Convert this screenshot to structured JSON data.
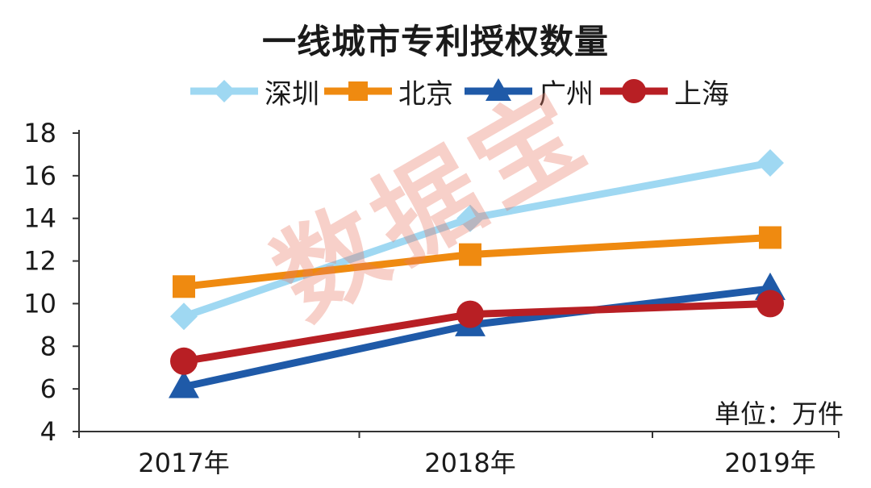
{
  "chart_data": {
    "type": "line",
    "title": "一线城市专利授权数量",
    "categories": [
      "2017年",
      "2018年",
      "2019年"
    ],
    "ylim": [
      4,
      18
    ],
    "yticks": [
      4,
      6,
      8,
      10,
      12,
      14,
      16,
      18
    ],
    "unit_label": "单位：万件",
    "legend_position": "top",
    "series": [
      {
        "name": "深圳",
        "values": [
          9.4,
          14.0,
          16.6
        ],
        "color": "#9fd8f2",
        "marker": "diamond"
      },
      {
        "name": "北京",
        "values": [
          10.8,
          12.3,
          13.1
        ],
        "color": "#ef8a10",
        "marker": "square"
      },
      {
        "name": "广州",
        "values": [
          6.1,
          9.0,
          10.7
        ],
        "color": "#1f5aa8",
        "marker": "triangle"
      },
      {
        "name": "上海",
        "values": [
          7.3,
          9.5,
          10.0
        ],
        "color": "#b81f24",
        "marker": "circle"
      }
    ]
  },
  "watermark": "数据宝"
}
